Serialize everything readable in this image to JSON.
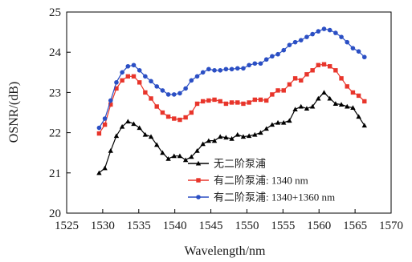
{
  "chart_data": {
    "type": "line",
    "xlabel": "Wavelength/nm",
    "ylabel": "OSNR/(dB)",
    "xlim": [
      1525,
      1570
    ],
    "ylim": [
      20,
      25
    ],
    "xticks": [
      1525,
      1530,
      1535,
      1540,
      1545,
      1550,
      1555,
      1560,
      1565,
      1570
    ],
    "yticks": [
      20,
      21,
      22,
      23,
      24,
      25
    ],
    "grid": false,
    "legend_position": "bottom-right",
    "series": [
      {
        "name": "无二阶泵浦",
        "color": "#000000",
        "marker": "triangle",
        "x": [
          1529.5,
          1530.3,
          1531.1,
          1531.9,
          1532.7,
          1533.5,
          1534.3,
          1535.1,
          1535.9,
          1536.7,
          1537.5,
          1538.3,
          1539.1,
          1539.9,
          1540.7,
          1541.5,
          1542.3,
          1543.1,
          1543.9,
          1544.7,
          1545.5,
          1546.3,
          1547.1,
          1547.9,
          1548.7,
          1549.5,
          1550.3,
          1551.1,
          1551.9,
          1552.7,
          1553.5,
          1554.3,
          1555.1,
          1555.9,
          1556.7,
          1557.5,
          1558.3,
          1559.1,
          1559.9,
          1560.7,
          1561.5,
          1562.3,
          1563.1,
          1563.9,
          1564.7,
          1565.5,
          1566.3
        ],
        "y": [
          21.0,
          21.12,
          21.55,
          21.92,
          22.15,
          22.28,
          22.22,
          22.12,
          21.95,
          21.9,
          21.7,
          21.5,
          21.35,
          21.42,
          21.42,
          21.32,
          21.4,
          21.55,
          21.72,
          21.8,
          21.8,
          21.9,
          21.88,
          21.85,
          21.95,
          21.9,
          21.92,
          21.95,
          22.0,
          22.1,
          22.2,
          22.25,
          22.25,
          22.3,
          22.58,
          22.65,
          22.6,
          22.65,
          22.85,
          23.0,
          22.85,
          22.72,
          22.7,
          22.65,
          22.62,
          22.4,
          22.18
        ]
      },
      {
        "name": "有二阶泵浦: 1340 nm",
        "color": "#e8352b",
        "marker": "square",
        "x": [
          1529.5,
          1530.3,
          1531.1,
          1531.9,
          1532.7,
          1533.5,
          1534.3,
          1535.1,
          1535.9,
          1536.7,
          1537.5,
          1538.3,
          1539.1,
          1539.9,
          1540.7,
          1541.5,
          1542.3,
          1543.1,
          1543.9,
          1544.7,
          1545.5,
          1546.3,
          1547.1,
          1547.9,
          1548.7,
          1549.5,
          1550.3,
          1551.1,
          1551.9,
          1552.7,
          1553.5,
          1554.3,
          1555.1,
          1555.9,
          1556.7,
          1557.5,
          1558.3,
          1559.1,
          1559.9,
          1560.7,
          1561.5,
          1562.3,
          1563.1,
          1563.9,
          1564.7,
          1565.5,
          1566.3
        ],
        "y": [
          21.98,
          22.2,
          22.7,
          23.1,
          23.3,
          23.4,
          23.4,
          23.25,
          23.0,
          22.85,
          22.65,
          22.5,
          22.4,
          22.35,
          22.32,
          22.38,
          22.5,
          22.72,
          22.78,
          22.8,
          22.82,
          22.78,
          22.72,
          22.75,
          22.75,
          22.72,
          22.75,
          22.82,
          22.82,
          22.8,
          22.95,
          23.05,
          23.05,
          23.2,
          23.35,
          23.3,
          23.45,
          23.55,
          23.68,
          23.7,
          23.65,
          23.55,
          23.35,
          23.15,
          23.0,
          22.92,
          22.78
        ]
      },
      {
        "name": "有二阶泵浦: 1340+1360 nm",
        "color": "#2b4fc4",
        "marker": "circle",
        "x": [
          1529.5,
          1530.3,
          1531.1,
          1531.9,
          1532.7,
          1533.5,
          1534.3,
          1535.1,
          1535.9,
          1536.7,
          1537.5,
          1538.3,
          1539.1,
          1539.9,
          1540.7,
          1541.5,
          1542.3,
          1543.1,
          1543.9,
          1544.7,
          1545.5,
          1546.3,
          1547.1,
          1547.9,
          1548.7,
          1549.5,
          1550.3,
          1551.1,
          1551.9,
          1552.7,
          1553.5,
          1554.3,
          1555.1,
          1555.9,
          1556.7,
          1557.5,
          1558.3,
          1559.1,
          1559.9,
          1560.7,
          1561.5,
          1562.3,
          1563.1,
          1563.9,
          1564.7,
          1565.5,
          1566.3
        ],
        "y": [
          22.12,
          22.35,
          22.8,
          23.25,
          23.5,
          23.65,
          23.68,
          23.55,
          23.4,
          23.28,
          23.15,
          23.05,
          22.95,
          22.95,
          22.98,
          23.1,
          23.3,
          23.4,
          23.5,
          23.58,
          23.55,
          23.55,
          23.58,
          23.58,
          23.6,
          23.6,
          23.68,
          23.72,
          23.72,
          23.82,
          23.9,
          23.95,
          24.05,
          24.18,
          24.25,
          24.3,
          24.38,
          24.45,
          24.52,
          24.58,
          24.55,
          24.48,
          24.38,
          24.25,
          24.1,
          24.02,
          23.88
        ]
      }
    ]
  }
}
